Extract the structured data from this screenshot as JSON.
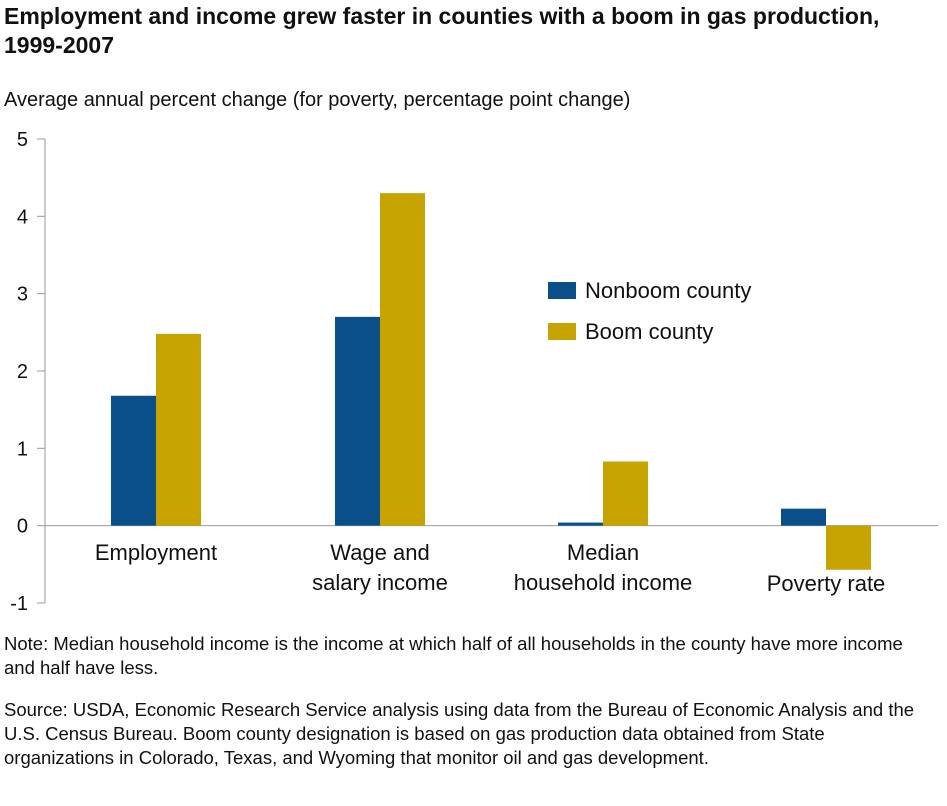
{
  "title": "Employment and income grew faster in counties with a boom in gas production, 1999-2007",
  "note": "Note: Median household income is the income at which half of all households in the county have more income and half have less.",
  "source": "Source: USDA, Economic Research Service analysis using data from the Bureau of Economic Analysis and the U.S. Census Bureau. Boom county designation is based on gas production data obtained from State organizations in Colorado, Texas, and Wyoming that monitor oil and gas development.",
  "colors": {
    "nonboom": "#0b4f8a",
    "boom": "#c6a300",
    "axis": "#999999"
  },
  "chart_data": {
    "type": "bar",
    "title": "Employment and income grew faster in counties with a boom in gas production, 1999-2007",
    "ylabel": "Average annual percent change (for poverty, percentage point change)",
    "ylim": [
      -1,
      5
    ],
    "yticks": [
      -1,
      0,
      1,
      2,
      3,
      4,
      5
    ],
    "grid": false,
    "legend_position": "right",
    "categories": [
      [
        "Employment"
      ],
      [
        "Wage and",
        "salary income"
      ],
      [
        "Median",
        "household income"
      ],
      [
        "Poverty rate"
      ]
    ],
    "series": [
      {
        "name": "Nonboom county",
        "color": "#0b4f8a",
        "values": [
          1.68,
          2.7,
          0.04,
          0.22
        ]
      },
      {
        "name": "Boom county",
        "color": "#c6a300",
        "values": [
          2.48,
          4.3,
          0.83,
          -0.57
        ]
      }
    ]
  }
}
